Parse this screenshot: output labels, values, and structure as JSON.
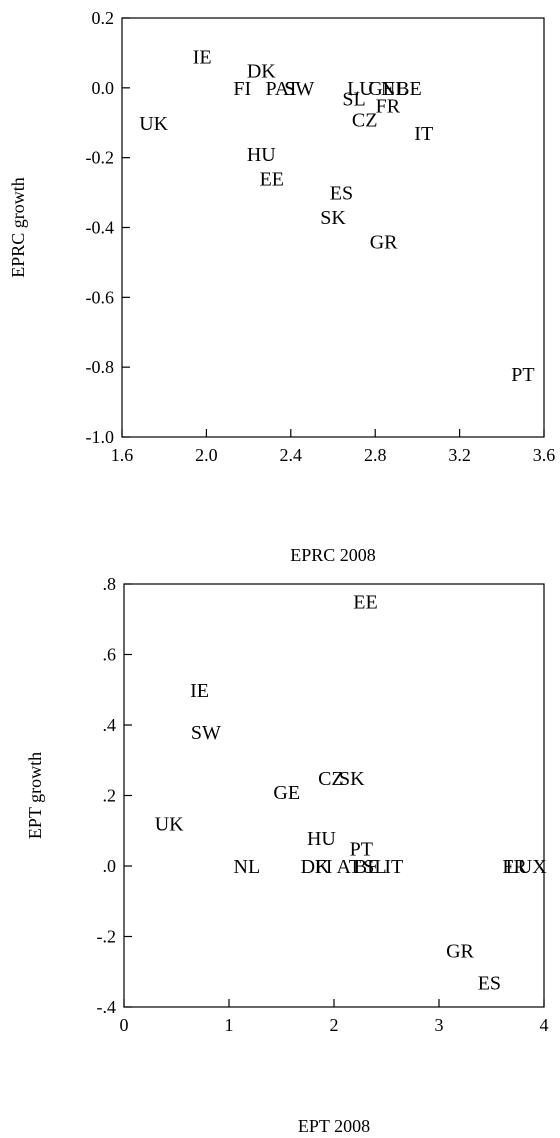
{
  "chart_data": [
    {
      "type": "scatter",
      "xlabel": "EPRC 2008",
      "ylabel": "EPRC growth",
      "xlim": [
        1.6,
        3.6
      ],
      "ylim": [
        -1.0,
        0.2
      ],
      "xticks": [
        "1.6",
        "2.0",
        "2.4",
        "2.8",
        "3.2",
        "3.6"
      ],
      "yticks": [
        "-1.0",
        "-0.8",
        "-0.6",
        "-0.4",
        "-0.2",
        "0.0",
        "0.2"
      ],
      "points": [
        {
          "label": "IE",
          "x": 1.98,
          "y": 0.09
        },
        {
          "label": "DK",
          "x": 2.26,
          "y": 0.05
        },
        {
          "label": "FI",
          "x": 2.17,
          "y": 0.0
        },
        {
          "label": "PAT",
          "x": 2.36,
          "y": 0.0
        },
        {
          "label": "SW",
          "x": 2.44,
          "y": 0.0
        },
        {
          "label": "LU",
          "x": 2.73,
          "y": 0.0
        },
        {
          "label": "GE",
          "x": 2.83,
          "y": 0.0
        },
        {
          "label": "NL",
          "x": 2.89,
          "y": 0.0
        },
        {
          "label": "BE",
          "x": 2.96,
          "y": 0.0
        },
        {
          "label": "SL",
          "x": 2.7,
          "y": -0.03
        },
        {
          "label": "FR",
          "x": 2.86,
          "y": -0.05
        },
        {
          "label": "UK",
          "x": 1.75,
          "y": -0.1
        },
        {
          "label": "CZ",
          "x": 2.75,
          "y": -0.09
        },
        {
          "label": "IT",
          "x": 3.03,
          "y": -0.13
        },
        {
          "label": "HU",
          "x": 2.26,
          "y": -0.19
        },
        {
          "label": "EE",
          "x": 2.31,
          "y": -0.26
        },
        {
          "label": "ES",
          "x": 2.64,
          "y": -0.3
        },
        {
          "label": "SK",
          "x": 2.6,
          "y": -0.37
        },
        {
          "label": "GR",
          "x": 2.84,
          "y": -0.44
        },
        {
          "label": "PT",
          "x": 3.5,
          "y": -0.82
        }
      ]
    },
    {
      "type": "scatter",
      "xlabel": "EPT 2008",
      "ylabel": "EPT growth",
      "xlim": [
        0,
        4
      ],
      "ylim": [
        -0.4,
        0.8
      ],
      "xticks": [
        "0",
        "1",
        "2",
        "3",
        "4"
      ],
      "yticks": [
        "-.4",
        "-.2",
        ".0",
        ".2",
        ".4",
        ".6",
        ".8"
      ],
      "points": [
        {
          "label": "EE",
          "x": 2.3,
          "y": 0.75
        },
        {
          "label": "IE",
          "x": 0.72,
          "y": 0.5
        },
        {
          "label": "SW",
          "x": 0.78,
          "y": 0.38
        },
        {
          "label": "CZ",
          "x": 1.97,
          "y": 0.25
        },
        {
          "label": "SK",
          "x": 2.17,
          "y": 0.25
        },
        {
          "label": "GE",
          "x": 1.55,
          "y": 0.21
        },
        {
          "label": "UK",
          "x": 0.43,
          "y": 0.12
        },
        {
          "label": "HU",
          "x": 1.88,
          "y": 0.08
        },
        {
          "label": "PT",
          "x": 2.26,
          "y": 0.05
        },
        {
          "label": "NL",
          "x": 1.17,
          "y": 0.0
        },
        {
          "label": "DK",
          "x": 1.82,
          "y": 0.0
        },
        {
          "label": "FI",
          "x": 1.9,
          "y": 0.0
        },
        {
          "label": "AT",
          "x": 2.14,
          "y": 0.0
        },
        {
          "label": "BE",
          "x": 2.31,
          "y": 0.0
        },
        {
          "label": "SL",
          "x": 2.39,
          "y": 0.0
        },
        {
          "label": "IT",
          "x": 2.57,
          "y": 0.0
        },
        {
          "label": "FR",
          "x": 3.72,
          "y": 0.0
        },
        {
          "label": "LUX",
          "x": 3.83,
          "y": 0.0
        },
        {
          "label": "GR",
          "x": 3.2,
          "y": -0.24
        },
        {
          "label": "ES",
          "x": 3.48,
          "y": -0.33
        }
      ]
    }
  ]
}
